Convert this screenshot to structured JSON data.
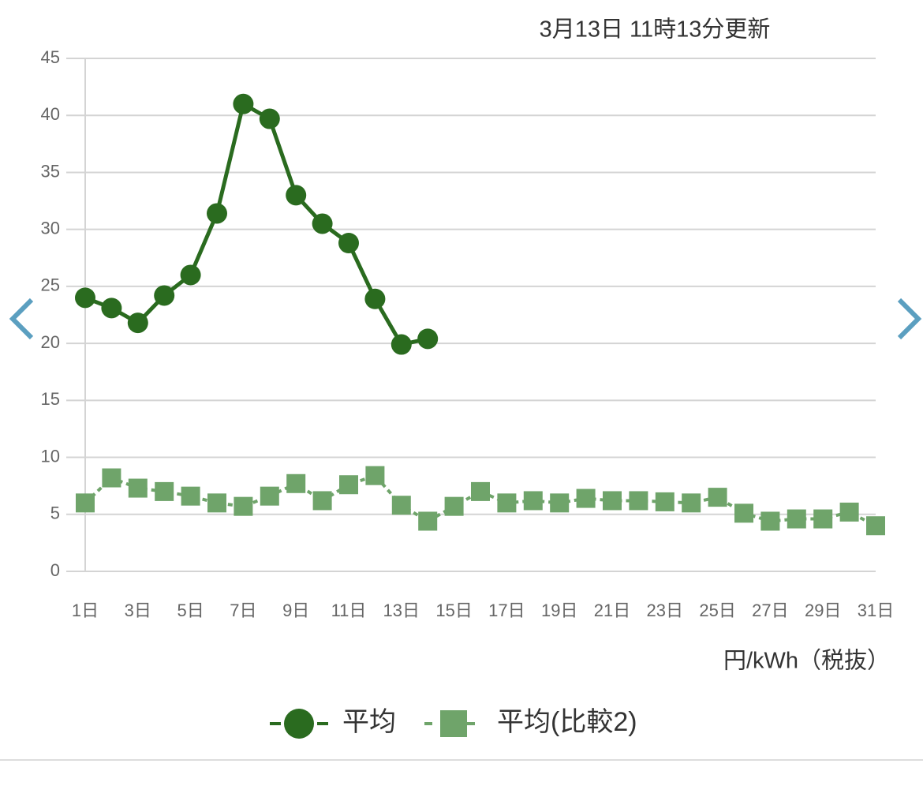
{
  "chart_data": {
    "type": "line",
    "subtitle": "3月13日 11時13分更新",
    "y_label": "円/kWh（税抜）",
    "categories": [
      "1日",
      null,
      "3日",
      null,
      "5日",
      null,
      "7日",
      null,
      "9日",
      null,
      "11日",
      null,
      "13日",
      null,
      "15日",
      null,
      "17日",
      null,
      "19日",
      null,
      "21日",
      null,
      "23日",
      null,
      "25日",
      null,
      "27日",
      null,
      "29日",
      null,
      "31日"
    ],
    "series": [
      {
        "name": "平均",
        "color": "#2a6b1f",
        "marker": "circle",
        "dashed": false,
        "values": [
          24.0,
          23.1,
          21.8,
          24.2,
          26.0,
          31.4,
          41.0,
          39.7,
          33.0,
          30.5,
          28.8,
          23.9,
          19.9,
          20.4,
          null,
          null,
          null,
          null,
          null,
          null,
          null,
          null,
          null,
          null,
          null,
          null,
          null,
          null,
          null,
          null,
          null
        ]
      },
      {
        "name": "平均(比較2)",
        "color": "#6fa46a",
        "marker": "square",
        "dashed": true,
        "values": [
          6.0,
          8.2,
          7.3,
          7.0,
          6.6,
          6.0,
          5.7,
          6.6,
          7.7,
          6.2,
          7.6,
          8.4,
          5.8,
          4.4,
          5.7,
          7.0,
          6.0,
          6.2,
          6.0,
          6.4,
          6.2,
          6.2,
          6.1,
          6.0,
          6.5,
          5.1,
          4.4,
          4.6,
          4.6,
          5.2,
          4.0
        ]
      }
    ],
    "ylim": [
      0,
      45
    ],
    "yticks": [
      0,
      5,
      10,
      15,
      20,
      25,
      30,
      35,
      40,
      45
    ],
    "grid": true
  }
}
